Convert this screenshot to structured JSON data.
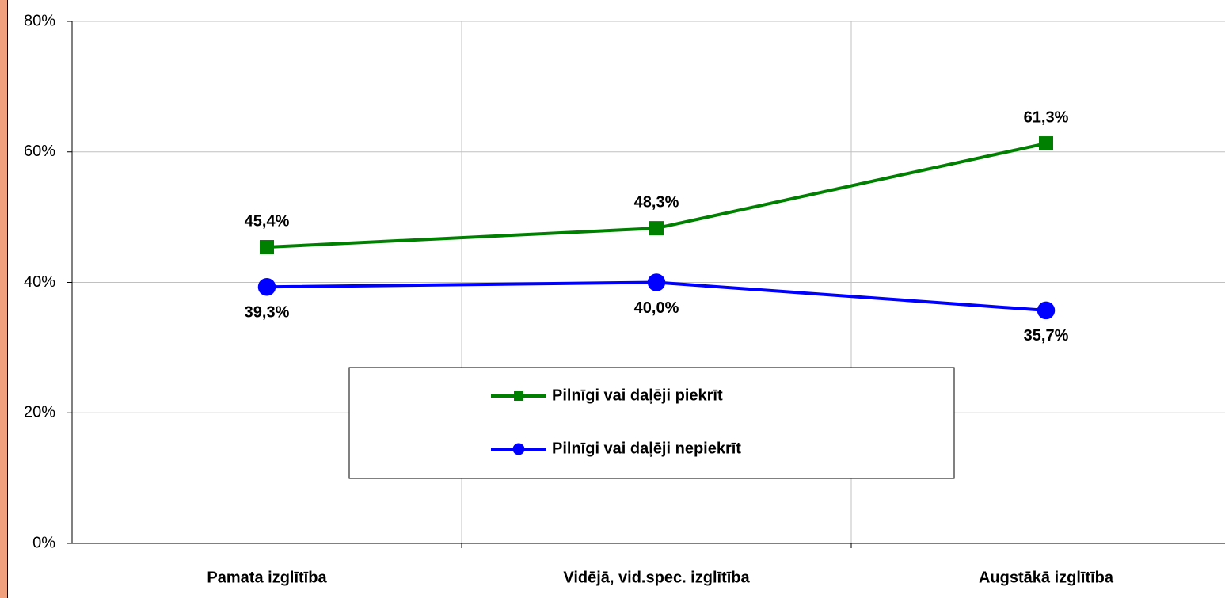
{
  "chart_data": {
    "type": "line",
    "categories": [
      "Pamata izglītība",
      "Vidējā, vid.spec. izglītība",
      "Augstākā izglītība"
    ],
    "series": [
      {
        "name": "Pilnīgi vai daļēji piekrīt",
        "color": "#008000",
        "marker": "square",
        "values": [
          45.4,
          48.3,
          61.3
        ],
        "value_labels": [
          "45,4%",
          "48,3%",
          "61,3%"
        ]
      },
      {
        "name": "Pilnīgi vai daļēji nepiekrīt",
        "color": "#0000ff",
        "marker": "circle",
        "values": [
          39.3,
          40.0,
          35.7
        ],
        "value_labels": [
          "39,3%",
          "40,0%",
          "35,7%"
        ]
      }
    ],
    "ylim": [
      0,
      80
    ],
    "yticks": [
      {
        "value": 0,
        "label": "0%"
      },
      {
        "value": 20,
        "label": "20%"
      },
      {
        "value": 40,
        "label": "40%"
      },
      {
        "value": 60,
        "label": "60%"
      },
      {
        "value": 80,
        "label": "80%"
      }
    ],
    "grid": true
  }
}
